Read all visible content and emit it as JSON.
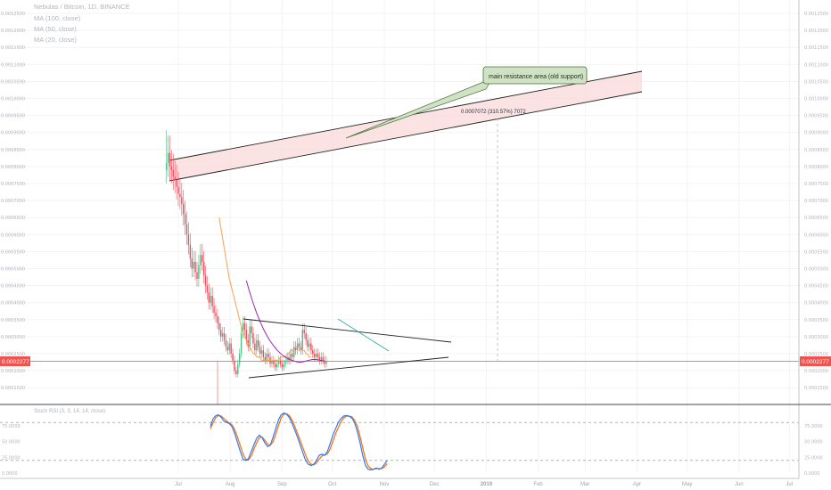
{
  "legend": {
    "symbol": "Nebulas / Bitcoin, 1D, BINANCE",
    "ma1": "MA (100, close)",
    "ma2": "MA (50, close)",
    "ma3": "MA (20, close)"
  },
  "price_label": "0.0002277",
  "annotation": "main resistance area (old support)",
  "measure_label": "0.0007072 (310.57%) 7072",
  "indicator_label": "Stoch RSI (3, 3, 14, 14, close)",
  "colors": {
    "up": "#53b987",
    "down": "#eb4d5c",
    "ma100": "#9c27b0",
    "ma50": "#f6a057",
    "ma20": "#f6a057",
    "price": "#ef5350",
    "zone": "#f9d9d9",
    "stoch_k": "#3179f5",
    "stoch_d": "#ff6d00",
    "trend": "#222222",
    "note_bg": "#cfe3c4"
  },
  "chart_data": {
    "type": "candlestick",
    "title": "Nebulas / Bitcoin, 1D, BINANCE",
    "y_axis_ticks": [
      "0.0012500",
      "0.0012000",
      "0.0011500",
      "0.0011000",
      "0.0010500",
      "0.0010000",
      "0.0009500",
      "0.0009000",
      "0.0008500",
      "0.0008000",
      "0.0007500",
      "0.0007000",
      "0.0006500",
      "0.0006000",
      "0.0005500",
      "0.0005000",
      "0.0004500",
      "0.0004000",
      "0.0003500",
      "0.0003000",
      "0.0002500",
      "0.0002000",
      "0.0001500"
    ],
    "x_axis_ticks": [
      "Jul",
      "Aug",
      "Sep",
      "Oct",
      "Nov",
      "Dec",
      "2019",
      "Feb",
      "Mar",
      "Apr",
      "May",
      "Jun",
      "Jul"
    ],
    "last_price": 0.0002277,
    "candles_start": "2018-06-24",
    "candles_close": [
      0.00081,
      0.00084,
      0.0008,
      0.00079,
      0.00077,
      0.00076,
      0.00074,
      0.00072,
      0.00071,
      0.00069,
      0.00066,
      0.00063,
      0.0006,
      0.00057,
      0.00053,
      0.0005,
      0.00052,
      0.00049,
      0.00047,
      0.00051,
      0.00054,
      0.00052,
      0.00048,
      0.00045,
      0.00043,
      0.0004,
      0.00042,
      0.00039,
      0.00037,
      0.00036,
      0.00034,
      0.00032,
      0.0003,
      0.00031,
      0.00029,
      0.00027,
      0.00026,
      0.00028,
      0.00025,
      0.00023,
      0.0002,
      0.00019,
      0.00022,
      0.00025,
      0.00031,
      0.00034,
      0.00032,
      0.00029,
      0.00027,
      0.00033,
      0.00031,
      0.00028,
      0.00026,
      0.00029,
      0.00027,
      0.00025,
      0.00026,
      0.00024,
      0.00023,
      0.00025,
      0.00024,
      0.00022,
      0.00023,
      0.00022,
      0.00021,
      0.00022,
      0.00023,
      0.00022,
      0.00021,
      0.00022,
      0.00023,
      0.00024,
      0.00023,
      0.00025,
      0.00024,
      0.00027,
      0.00026,
      0.00028,
      0.00027,
      0.00026,
      0.00032,
      0.00031,
      0.00029,
      0.00027,
      0.00028,
      0.00026,
      0.00025,
      0.00024,
      0.00025,
      0.00024,
      0.00023,
      0.00024,
      0.00023,
      0.00022,
      0.000228
    ],
    "ma_100_start": "2018-08-10",
    "ma_100": [
      0.000465,
      0.000447,
      0.00043,
      0.000414,
      0.000398,
      0.000384,
      0.00037,
      0.000357,
      0.000345,
      0.000334,
      0.000323,
      0.000313,
      0.000304,
      0.000295,
      0.000287,
      0.00028,
      0.000273,
      0.000267,
      0.000261,
      0.000256,
      0.000251,
      0.000247,
      0.000243,
      0.00024,
      0.000237,
      0.000234,
      0.000232,
      0.00023,
      0.000228,
      0.000227,
      0.000226,
      0.000225,
      0.000225,
      0.000226,
      0.000227,
      0.000228,
      0.00023,
      0.000231,
      0.000232,
      0.000233,
      0.000233,
      0.000233,
      0.000232,
      0.000231,
      0.00023,
      0.000229,
      0.000228
    ],
    "ma_50_start": "2018-07-25",
    "ma_50": [
      0.00065,
      0.00062,
      0.00059,
      0.00056,
      0.00053,
      0.0005,
      0.00047,
      0.00045,
      0.00043,
      0.00041,
      0.00039,
      0.00037,
      0.00035,
      0.00033,
      0.00031,
      0.0003,
      0.00029,
      0.00028,
      0.00027,
      0.00026,
      0.00025,
      0.00025,
      0.00024,
      0.00024,
      0.00024,
      0.00023,
      0.00023,
      0.00023,
      0.00023,
      0.00023,
      0.00023,
      0.00023,
      0.00023,
      0.00023,
      0.00023,
      0.00023,
      0.00024,
      0.00024,
      0.00024,
      0.00024,
      0.00025,
      0.00025,
      0.00026,
      0.00026,
      0.00026,
      0.00027,
      0.00027,
      0.00027,
      0.00027,
      0.00026,
      0.00026,
      0.00025,
      0.00025,
      0.00024,
      0.00024
    ],
    "stoch_rsi": {
      "levels": [
        80,
        20
      ],
      "y_axis_ticks": [
        "75.0000",
        "50.0000",
        "25.0000",
        "0.0000"
      ],
      "k": [
        74,
        86,
        91,
        92,
        88,
        82,
        80,
        78,
        73,
        62,
        48,
        34,
        22,
        20,
        23,
        34,
        45,
        55,
        60,
        56,
        48,
        42,
        44,
        56,
        70,
        84,
        92,
        95,
        93,
        88,
        79,
        68,
        57,
        45,
        32,
        20,
        14,
        12,
        14,
        20,
        28,
        30,
        28,
        34,
        46,
        60,
        70,
        80,
        86,
        90,
        91,
        90,
        87,
        80,
        66,
        48,
        28,
        12,
        6,
        5,
        6,
        8,
        6,
        8,
        14,
        20
      ],
      "d": [
        70,
        80,
        88,
        91,
        90,
        86,
        82,
        79,
        76,
        68,
        56,
        43,
        30,
        22,
        21,
        27,
        38,
        48,
        56,
        57,
        52,
        46,
        44,
        49,
        61,
        75,
        87,
        93,
        94,
        91,
        84,
        74,
        63,
        52,
        40,
        28,
        19,
        14,
        13,
        16,
        22,
        27,
        29,
        30,
        38,
        50,
        62,
        72,
        81,
        87,
        90,
        90,
        89,
        84,
        74,
        58,
        40,
        22,
        11,
        7,
        6,
        7,
        7,
        7,
        10,
        15
      ]
    }
  }
}
